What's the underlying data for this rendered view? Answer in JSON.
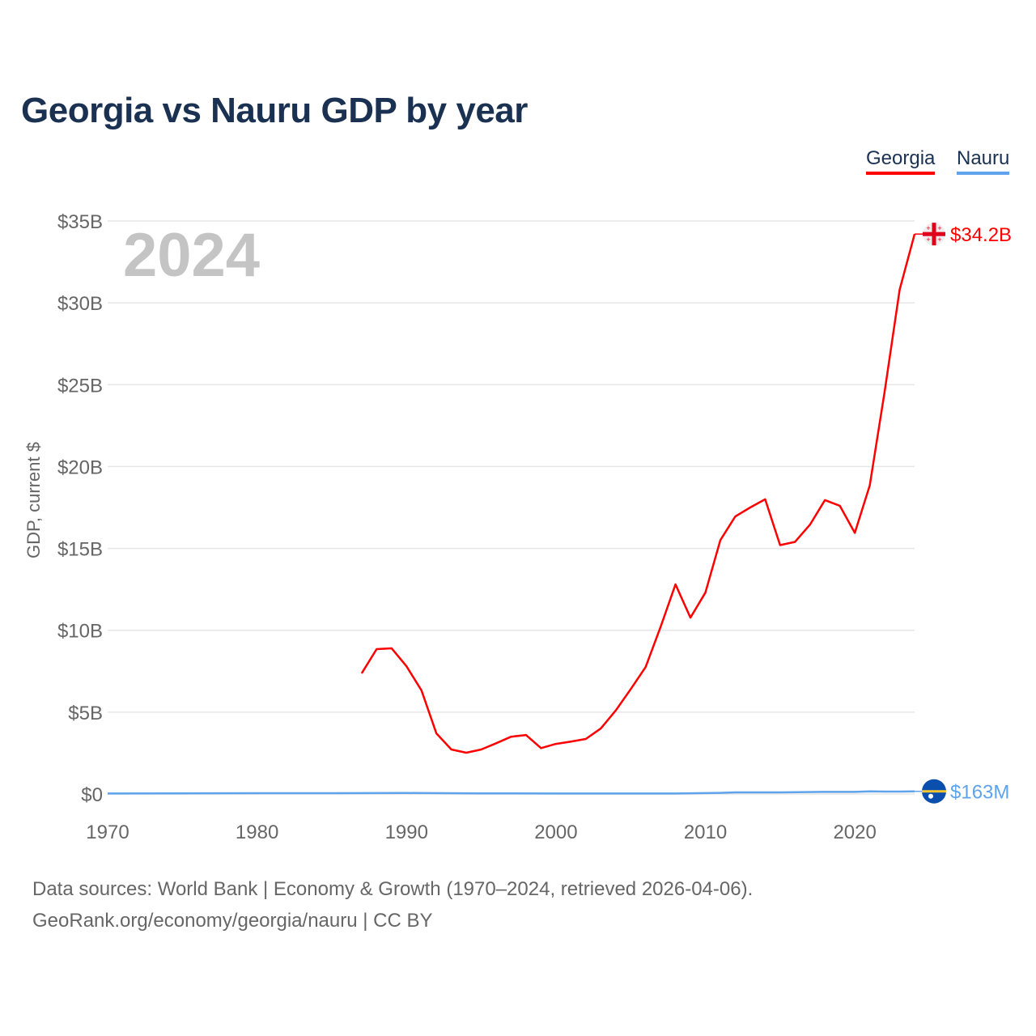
{
  "chart_data": {
    "type": "line",
    "title": "Georgia vs Nauru GDP by year",
    "ylabel": "GDP, current $",
    "xlabel": "",
    "xlim": [
      1970,
      2024
    ],
    "ylim": [
      0,
      35
    ],
    "x_ticks": [
      "1970",
      "1980",
      "1990",
      "2000",
      "2010",
      "2020"
    ],
    "y_ticks": [
      "$0",
      "$5B",
      "$10B",
      "$15B",
      "$20B",
      "$25B",
      "$30B",
      "$35B"
    ],
    "grid": true,
    "legend_position": "top-right",
    "year_label": "2024",
    "series": [
      {
        "name": "Georgia",
        "color": "#ff0000",
        "end_label": "$34.2B",
        "flag": "georgia-flag",
        "x": [
          1987,
          1988,
          1989,
          1990,
          1991,
          1992,
          1993,
          1994,
          1995,
          1996,
          1997,
          1998,
          1999,
          2000,
          2001,
          2002,
          2003,
          2004,
          2005,
          2006,
          2007,
          2008,
          2009,
          2010,
          2011,
          2012,
          2013,
          2014,
          2015,
          2016,
          2017,
          2018,
          2019,
          2020,
          2021,
          2022,
          2023,
          2024
        ],
        "values": [
          7.37,
          8.85,
          8.9,
          7.8,
          6.33,
          3.7,
          2.72,
          2.52,
          2.72,
          3.1,
          3.5,
          3.6,
          2.8,
          3.06,
          3.2,
          3.36,
          4.0,
          5.1,
          6.4,
          7.75,
          10.2,
          12.8,
          10.77,
          12.3,
          15.5,
          16.95,
          17.5,
          18.0,
          15.2,
          15.4,
          16.45,
          17.95,
          17.6,
          15.95,
          18.85,
          24.6,
          30.8,
          34.2
        ]
      },
      {
        "name": "Nauru",
        "color": "#5ea3ec",
        "end_label": "$163M",
        "flag": "nauru-flag",
        "x": [
          1970,
          1974,
          1980,
          1985,
          1990,
          1995,
          2000,
          2005,
          2008,
          2011,
          2012,
          2015,
          2018,
          2020,
          2021,
          2022,
          2023,
          2024
        ],
        "values": [
          0.03,
          0.04,
          0.05,
          0.05,
          0.06,
          0.04,
          0.03,
          0.03,
          0.03,
          0.07,
          0.1,
          0.1,
          0.13,
          0.13,
          0.16,
          0.15,
          0.15,
          0.163
        ]
      }
    ]
  },
  "footer": {
    "line1": "Data sources: World Bank | Economy & Growth (1970–2024, retrieved 2026-04-06).",
    "line2": "GeoRank.org/economy/georgia/nauru | CC BY"
  }
}
